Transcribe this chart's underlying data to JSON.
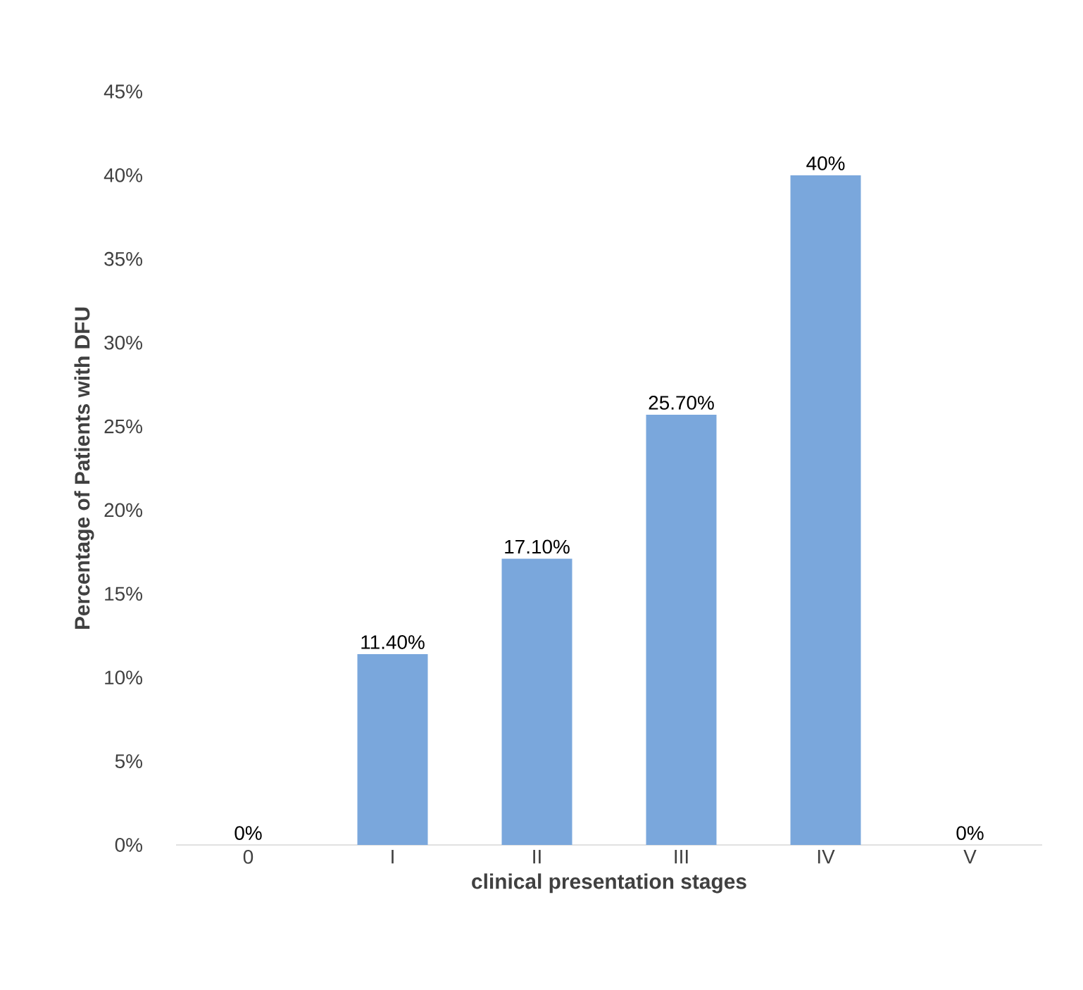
{
  "chart_data": {
    "type": "bar",
    "xlabel": "clinical presentation stages",
    "ylabel": "Percentage of Patients with DFU",
    "categories": [
      "0",
      "I",
      "II",
      "III",
      "IV",
      "V"
    ],
    "values": [
      0,
      11.4,
      17.1,
      25.7,
      40,
      0
    ],
    "value_labels": [
      "0%",
      "11.40%",
      "17.10%",
      "25.70%",
      "40%",
      "0%"
    ],
    "color": "#7aa7dc",
    "ylim": [
      0,
      45
    ],
    "yticks": [
      {
        "value": 0,
        "label": "0%"
      },
      {
        "value": 5,
        "label": "5%"
      },
      {
        "value": 10,
        "label": "10%"
      },
      {
        "value": 15,
        "label": "15%"
      },
      {
        "value": 20,
        "label": "20%"
      },
      {
        "value": 25,
        "label": "25%"
      },
      {
        "value": 30,
        "label": "30%"
      },
      {
        "value": 35,
        "label": "35%"
      },
      {
        "value": 40,
        "label": "40%"
      },
      {
        "value": 45,
        "label": "45%"
      }
    ]
  }
}
